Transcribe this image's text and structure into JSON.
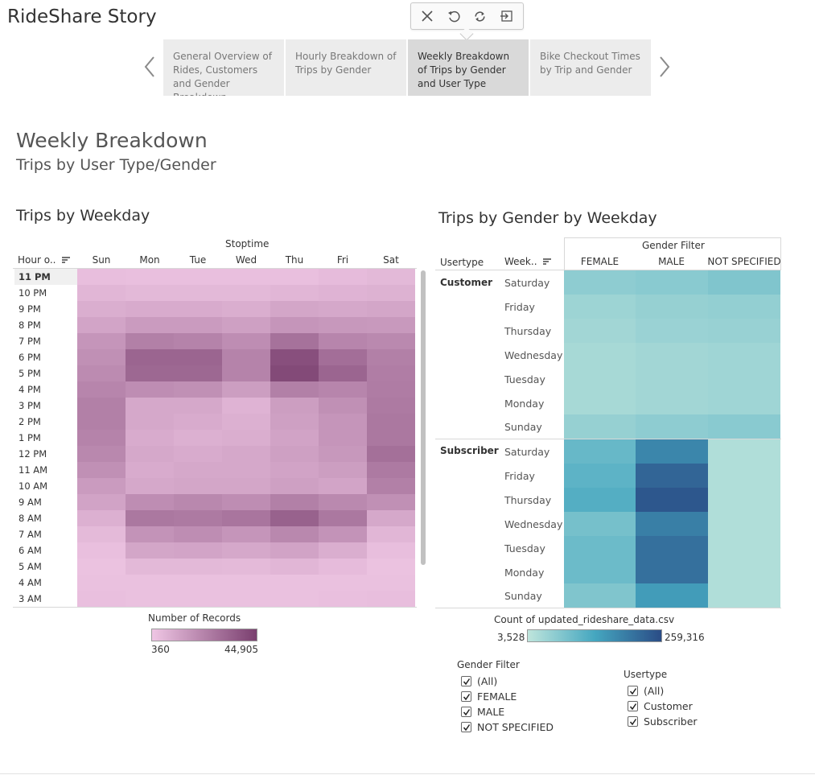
{
  "story": {
    "title": "RideShare Story"
  },
  "toolbar": {
    "icons": [
      "close-icon",
      "undo-icon",
      "refresh-icon",
      "exit-icon"
    ]
  },
  "story_points": [
    {
      "label": "General Overview of Rides, Customers and Gender Breakdown",
      "active": false
    },
    {
      "label": "Hourly Breakdown of Trips by Gender",
      "active": false
    },
    {
      "label": "Weekly Breakdown of Trips by Gender and User Type",
      "active": true
    },
    {
      "label": "Bike Checkout Times by Trip and Gender",
      "active": false
    }
  ],
  "dashboard": {
    "title": "Weekly Breakdown",
    "subtitle": "Trips by User Type/Gender"
  },
  "weekday_sheet": {
    "title": "Trips by Weekday",
    "column_group": "Stoptime",
    "row_header": "Hour o..",
    "days": [
      "Sun",
      "Mon",
      "Tue",
      "Wed",
      "Thu",
      "Fri",
      "Sat"
    ],
    "hours": [
      "11 PM",
      "10 PM",
      "9 PM",
      "8 PM",
      "7 PM",
      "6 PM",
      "5 PM",
      "4 PM",
      "3 PM",
      "2 PM",
      "1 PM",
      "12 PM",
      "11 AM",
      "10 AM",
      "9 AM",
      "8 AM",
      "7 AM",
      "6 AM",
      "5 AM",
      "4 AM",
      "3 AM"
    ],
    "selected_hour": "11 PM",
    "color_low": "#efc6e4",
    "color_high": "#7a3f6f",
    "intensity": [
      [
        0.06,
        0.05,
        0.05,
        0.05,
        0.05,
        0.08,
        0.1
      ],
      [
        0.12,
        0.1,
        0.1,
        0.1,
        0.12,
        0.14,
        0.15
      ],
      [
        0.18,
        0.2,
        0.2,
        0.18,
        0.24,
        0.22,
        0.24
      ],
      [
        0.25,
        0.32,
        0.32,
        0.28,
        0.36,
        0.34,
        0.33
      ],
      [
        0.36,
        0.52,
        0.5,
        0.42,
        0.62,
        0.48,
        0.45
      ],
      [
        0.4,
        0.72,
        0.72,
        0.5,
        0.88,
        0.65,
        0.52
      ],
      [
        0.44,
        0.7,
        0.7,
        0.5,
        0.92,
        0.72,
        0.54
      ],
      [
        0.48,
        0.42,
        0.4,
        0.3,
        0.52,
        0.48,
        0.55
      ],
      [
        0.52,
        0.22,
        0.22,
        0.14,
        0.3,
        0.4,
        0.56
      ],
      [
        0.52,
        0.22,
        0.2,
        0.16,
        0.28,
        0.36,
        0.58
      ],
      [
        0.5,
        0.2,
        0.16,
        0.18,
        0.26,
        0.36,
        0.58
      ],
      [
        0.46,
        0.22,
        0.2,
        0.22,
        0.28,
        0.34,
        0.64
      ],
      [
        0.4,
        0.2,
        0.22,
        0.22,
        0.26,
        0.3,
        0.56
      ],
      [
        0.32,
        0.22,
        0.24,
        0.24,
        0.28,
        0.25,
        0.52
      ],
      [
        0.26,
        0.42,
        0.46,
        0.42,
        0.52,
        0.45,
        0.4
      ],
      [
        0.16,
        0.58,
        0.56,
        0.6,
        0.74,
        0.58,
        0.22
      ],
      [
        0.09,
        0.38,
        0.42,
        0.36,
        0.46,
        0.38,
        0.12
      ],
      [
        0.05,
        0.24,
        0.25,
        0.22,
        0.26,
        0.18,
        0.06
      ],
      [
        0.03,
        0.1,
        0.1,
        0.09,
        0.12,
        0.08,
        0.03
      ],
      [
        0.04,
        0.04,
        0.04,
        0.04,
        0.04,
        0.04,
        0.04
      ],
      [
        0.05,
        0.04,
        0.04,
        0.04,
        0.04,
        0.05,
        0.06
      ]
    ],
    "legend": {
      "title": "Number of Records",
      "min": "360",
      "max": "44,905"
    }
  },
  "gender_sheet": {
    "title": "Trips by Gender by Weekday",
    "header_usertype": "Usertype",
    "header_weekday": "Week..",
    "column_group": "Gender Filter",
    "genders": [
      "FEMALE",
      "MALE",
      "NOT SPECIFIED"
    ],
    "groups": [
      {
        "usertype": "Customer",
        "days": [
          "Saturday",
          "Friday",
          "Thursday",
          "Wednesday",
          "Tuesday",
          "Monday",
          "Sunday"
        ],
        "intensity": [
          [
            0.2,
            0.22,
            0.26
          ],
          [
            0.14,
            0.17,
            0.18
          ],
          [
            0.12,
            0.15,
            0.16
          ],
          [
            0.1,
            0.12,
            0.13
          ],
          [
            0.1,
            0.12,
            0.13
          ],
          [
            0.1,
            0.12,
            0.13
          ],
          [
            0.17,
            0.2,
            0.22
          ]
        ]
      },
      {
        "usertype": "Subscriber",
        "days": [
          "Saturday",
          "Friday",
          "Thursday",
          "Wednesday",
          "Tuesday",
          "Monday",
          "Sunday"
        ],
        "intensity": [
          [
            0.36,
            0.68,
            0.06
          ],
          [
            0.4,
            0.86,
            0.06
          ],
          [
            0.44,
            0.94,
            0.06
          ],
          [
            0.3,
            0.72,
            0.06
          ],
          [
            0.34,
            0.8,
            0.06
          ],
          [
            0.34,
            0.8,
            0.06
          ],
          [
            0.26,
            0.56,
            0.06
          ]
        ]
      }
    ],
    "color_low": "#bfe5dc",
    "color_mid": "#45a7c0",
    "color_high": "#2a4c86",
    "legend": {
      "title": "Count of updated_rideshare_data.csv",
      "min": "3,528",
      "max": "259,316"
    }
  },
  "filters": {
    "gender": {
      "title": "Gender Filter",
      "options": [
        "(All)",
        "FEMALE",
        "MALE",
        "NOT SPECIFIED"
      ]
    },
    "usertype": {
      "title": "Usertype",
      "options": [
        "(All)",
        "Customer",
        "Subscriber"
      ]
    }
  }
}
